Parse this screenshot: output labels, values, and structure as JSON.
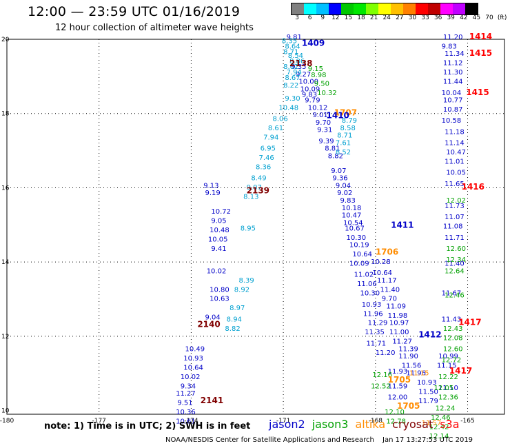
{
  "header": {
    "title": "12:00 — 23:59 UTC 01/16/2019",
    "subtitle": "12 hour collection of altimeter wave heights"
  },
  "legend": {
    "colors": [
      "#808080",
      "#00ffff",
      "#00c0ff",
      "#0000ff",
      "#00c800",
      "#00e800",
      "#80ff00",
      "#ffff00",
      "#ffc000",
      "#ff8000",
      "#ff0000",
      "#c00000",
      "#ff00ff",
      "#c000ff",
      "#000000"
    ],
    "ticks": [
      "3",
      "6",
      "9",
      "12",
      "15",
      "18",
      "21",
      "24",
      "27",
      "30",
      "33",
      "36",
      "39",
      "42",
      "45",
      "70",
      "(ft)"
    ]
  },
  "axes": {
    "lon_labels": [
      "-180",
      "-177",
      "-174",
      "-171",
      "-168",
      "-165"
    ],
    "lat_labels": [
      "20",
      "18",
      "16",
      "14",
      "12",
      "10"
    ]
  },
  "pass_labels": [
    {
      "text": "1409",
      "color": "#0000c8",
      "lon": -170.4,
      "lat": 19.82
    },
    {
      "text": "2138",
      "color": "#800000",
      "lon": -170.8,
      "lat": 19.28
    },
    {
      "text": "1707",
      "color": "#ff8c00",
      "lon": -169.35,
      "lat": 17.95
    },
    {
      "text": "1410",
      "color": "#0000c8",
      "lon": -169.6,
      "lat": 17.87
    },
    {
      "text": "2139",
      "color": "#800000",
      "lon": -172.2,
      "lat": 15.85
    },
    {
      "text": "1411",
      "color": "#0000c8",
      "lon": -167.5,
      "lat": 14.92
    },
    {
      "text": "1706",
      "color": "#ff8c00",
      "lon": -168.0,
      "lat": 14.2
    },
    {
      "text": "2140",
      "color": "#800000",
      "lon": -173.8,
      "lat": 12.25
    },
    {
      "text": "1412",
      "color": "#0000c8",
      "lon": -166.6,
      "lat": 11.97
    },
    {
      "text": "2141",
      "color": "#800000",
      "lon": -173.7,
      "lat": 10.2
    },
    {
      "text": "1705",
      "color": "#ff8c00",
      "lon": -167.6,
      "lat": 10.75
    },
    {
      "text": "1705",
      "color": "#ff8c00",
      "lon": -167.3,
      "lat": 10.05
    },
    {
      "text": "1414",
      "color": "#ff0000",
      "lon": -164.95,
      "lat": 20.0
    },
    {
      "text": "1415",
      "color": "#ff0000",
      "lon": -164.95,
      "lat": 19.55
    },
    {
      "text": "1415",
      "color": "#ff0000",
      "lon": -165.05,
      "lat": 18.5
    },
    {
      "text": "1416",
      "color": "#ff0000",
      "lon": -165.2,
      "lat": 15.95
    },
    {
      "text": "1417",
      "color": "#ff0000",
      "lon": -165.3,
      "lat": 12.3
    },
    {
      "text": "1417",
      "color": "#ff0000",
      "lon": -165.6,
      "lat": 11.0
    }
  ],
  "tracks": [
    {
      "name": "jason2-west",
      "color": "#0000c8",
      "points": [
        [
          -170.9,
          20.0,
          "9.81"
        ],
        [
          -170.75,
          19.2,
          "9.35"
        ],
        [
          -170.6,
          19.0,
          "9.27"
        ],
        [
          -170.5,
          18.8,
          "10.00"
        ],
        [
          -170.45,
          18.6,
          "10.09"
        ],
        [
          -170.4,
          18.45,
          "9.83"
        ],
        [
          -170.3,
          18.3,
          "9.79"
        ],
        [
          -170.2,
          18.1,
          "10.12"
        ],
        [
          -170.05,
          17.9,
          "9.01"
        ],
        [
          -169.95,
          17.7,
          "9.70"
        ],
        [
          -169.9,
          17.5,
          "9.31"
        ],
        [
          -169.85,
          17.2,
          "9.39"
        ],
        [
          -169.65,
          17.0,
          "8.81"
        ],
        [
          -169.55,
          16.8,
          "8.82"
        ],
        [
          -173.6,
          16.0,
          "9.13"
        ],
        [
          -173.55,
          15.8,
          "9.19"
        ],
        [
          -173.35,
          15.3,
          "10.72"
        ],
        [
          -173.35,
          15.05,
          "9.05"
        ],
        [
          -173.4,
          14.8,
          "10.48"
        ],
        [
          -173.45,
          14.55,
          "10.05"
        ],
        [
          -173.35,
          14.3,
          "9.41"
        ],
        [
          -173.5,
          13.7,
          "10.02"
        ],
        [
          -173.4,
          13.2,
          "10.80"
        ],
        [
          -173.4,
          12.95,
          "10.63"
        ],
        [
          -173.55,
          12.45,
          "9.04"
        ],
        [
          -174.2,
          11.6,
          "10.49"
        ],
        [
          -174.25,
          11.35,
          "10.93"
        ],
        [
          -174.25,
          11.1,
          "10.64"
        ],
        [
          -174.35,
          10.85,
          "10.02"
        ],
        [
          -174.35,
          10.6,
          "9.34"
        ],
        [
          -174.5,
          10.4,
          "11.27"
        ],
        [
          -174.45,
          10.15,
          "9.51"
        ],
        [
          -174.5,
          9.9,
          "10.36"
        ],
        [
          -174.5,
          9.65,
          "10.61"
        ]
      ]
    },
    {
      "name": "jason2-mid",
      "color": "#0000c8",
      "points": [
        [
          -169.45,
          16.4,
          "9.07"
        ],
        [
          -169.4,
          16.2,
          "9.36"
        ],
        [
          -169.3,
          16.0,
          "9.04"
        ],
        [
          -169.25,
          15.8,
          "9.02"
        ],
        [
          -169.15,
          15.6,
          "9.83"
        ],
        [
          -169.1,
          15.4,
          "10.18"
        ],
        [
          -169.1,
          15.2,
          "10.47"
        ],
        [
          -169.05,
          15.0,
          "10.54"
        ],
        [
          -169.0,
          14.85,
          "10.67"
        ],
        [
          -168.95,
          14.6,
          "10.30"
        ],
        [
          -168.85,
          14.4,
          "10.19"
        ],
        [
          -168.75,
          14.15,
          "10.64"
        ],
        [
          -168.85,
          13.9,
          "10.09"
        ],
        [
          -168.7,
          13.6,
          "11.02"
        ],
        [
          -168.6,
          13.35,
          "11.06"
        ],
        [
          -168.5,
          13.1,
          "10.30"
        ],
        [
          -168.45,
          12.8,
          "10.93"
        ],
        [
          -168.4,
          12.55,
          "11.96"
        ],
        [
          -168.25,
          12.3,
          "11.29"
        ],
        [
          -168.35,
          12.05,
          "11.35"
        ],
        [
          -168.3,
          11.75,
          "11.71"
        ],
        [
          -168.0,
          11.5,
          "11.20"
        ],
        [
          -167.6,
          11.0,
          "11.93"
        ],
        [
          -167.6,
          10.6,
          "11.59"
        ],
        [
          -167.6,
          10.3,
          "12.00"
        ]
      ]
    },
    {
      "name": "jason2-east",
      "color": "#0000c8",
      "points": [
        [
          -168.15,
          13.95,
          "10.28"
        ],
        [
          -168.1,
          13.65,
          "10.64"
        ],
        [
          -167.95,
          13.45,
          "11.17"
        ],
        [
          -167.85,
          13.2,
          "11.40"
        ],
        [
          -167.8,
          12.95,
          "9.70"
        ],
        [
          -167.65,
          12.75,
          "11.09"
        ],
        [
          -167.6,
          12.5,
          "11.98"
        ],
        [
          -167.55,
          12.3,
          "10.97"
        ],
        [
          -167.55,
          12.05,
          "11.00"
        ],
        [
          -167.45,
          11.8,
          "11.27"
        ],
        [
          -167.25,
          11.6,
          "11.39"
        ],
        [
          -167.25,
          11.4,
          "11.90"
        ],
        [
          -167.15,
          11.15,
          "11.56"
        ],
        [
          -167.0,
          10.95,
          "11.96"
        ],
        [
          -166.65,
          10.7,
          "10.93"
        ],
        [
          -166.6,
          10.45,
          "11.50"
        ],
        [
          -166.6,
          10.2,
          "11.79"
        ]
      ]
    },
    {
      "name": "jason2-far",
      "color": "#0000c8",
      "points": [
        [
          -165.8,
          20.0,
          "11.20"
        ],
        [
          -165.85,
          19.75,
          "9.83"
        ],
        [
          -165.75,
          19.55,
          "11.34"
        ],
        [
          -165.8,
          19.3,
          "11.12"
        ],
        [
          -165.8,
          19.05,
          "11.30"
        ],
        [
          -165.8,
          18.8,
          "11.44"
        ],
        [
          -165.85,
          18.5,
          "10.04"
        ],
        [
          -165.8,
          18.3,
          "10.77"
        ],
        [
          -165.8,
          18.05,
          "10.87"
        ],
        [
          -165.85,
          17.75,
          "10.58"
        ],
        [
          -165.75,
          17.45,
          "11.18"
        ],
        [
          -165.75,
          17.15,
          "11.14"
        ],
        [
          -165.7,
          16.9,
          "10.47"
        ],
        [
          -165.75,
          16.65,
          "11.01"
        ],
        [
          -165.7,
          16.35,
          "10.05"
        ],
        [
          -165.75,
          16.05,
          "11.65"
        ],
        [
          -165.75,
          15.45,
          "11.73"
        ],
        [
          -165.75,
          15.15,
          "11.07"
        ],
        [
          -165.8,
          14.9,
          "11.08"
        ],
        [
          -165.75,
          14.6,
          "11.71"
        ],
        [
          -165.75,
          13.9,
          "11.40"
        ],
        [
          -165.85,
          13.1,
          "11.67"
        ],
        [
          -165.85,
          12.4,
          "11.43"
        ],
        [
          -165.95,
          11.4,
          "10.99"
        ],
        [
          -166.0,
          11.15,
          "11.15"
        ],
        [
          -165.95,
          10.55,
          "11.10"
        ]
      ]
    },
    {
      "name": "jason3",
      "color": "#00a000",
      "points": [
        [
          -170.2,
          19.15,
          "9.15"
        ],
        [
          -170.1,
          18.98,
          "8.98"
        ],
        [
          -170.0,
          18.75,
          "9.50"
        ],
        [
          -169.9,
          18.5,
          "10.32"
        ],
        [
          -165.7,
          15.6,
          "12.02"
        ],
        [
          -165.7,
          14.3,
          "12.60"
        ],
        [
          -165.7,
          14.0,
          "12.34"
        ],
        [
          -165.75,
          13.7,
          "12.64"
        ],
        [
          -165.75,
          13.05,
          "12.46"
        ],
        [
          -165.8,
          12.15,
          "12.43"
        ],
        [
          -165.8,
          11.9,
          "12.08"
        ],
        [
          -165.8,
          11.6,
          "12.60"
        ],
        [
          -165.85,
          11.3,
          "12.72"
        ],
        [
          -165.95,
          10.85,
          "12.22"
        ],
        [
          -166.1,
          10.55,
          "12.05"
        ],
        [
          -165.95,
          10.3,
          "12.36"
        ],
        [
          -166.05,
          10.0,
          "12.24"
        ],
        [
          -166.2,
          9.75,
          "12.46"
        ],
        [
          -166.25,
          9.5,
          "12.42"
        ],
        [
          -166.25,
          9.25,
          "12.14"
        ],
        [
          -168.1,
          10.9,
          "12.16"
        ],
        [
          -168.15,
          10.6,
          "12.52"
        ],
        [
          -167.7,
          9.9,
          "12.10"
        ],
        [
          -167.65,
          9.65,
          "12.78"
        ]
      ]
    },
    {
      "name": "altika",
      "color": "#ff8c00",
      "points": [
        [
          -166.9,
          10.95,
          "11.15"
        ],
        [
          -166.5,
          9.6,
          "11.57"
        ]
      ]
    },
    {
      "name": "saral-cyan",
      "color": "#00a0d0",
      "points": [
        [
          -171.05,
          19.9,
          "8.35"
        ],
        [
          -170.95,
          19.75,
          "8.64"
        ],
        [
          -171.0,
          19.6,
          "8.71"
        ],
        [
          -170.85,
          19.5,
          "8.54"
        ],
        [
          -170.8,
          19.35,
          "8.86"
        ],
        [
          -171.0,
          19.2,
          "8.02"
        ],
        [
          -170.9,
          19.05,
          "7.94"
        ],
        [
          -170.95,
          18.9,
          "8.67"
        ],
        [
          -171.0,
          18.7,
          "8.22"
        ],
        [
          -170.95,
          18.35,
          "9.30"
        ],
        [
          -171.15,
          18.1,
          "10.48"
        ],
        [
          -171.35,
          17.8,
          "8.06"
        ],
        [
          -171.5,
          17.55,
          "8.61"
        ],
        [
          -171.65,
          17.3,
          "7.94"
        ],
        [
          -171.75,
          17.0,
          "6.95"
        ],
        [
          -171.8,
          16.75,
          "7.46"
        ],
        [
          -171.9,
          16.5,
          "8.36"
        ],
        [
          -172.05,
          16.2,
          "8.49"
        ],
        [
          -172.2,
          15.95,
          "9.07"
        ],
        [
          -172.3,
          15.7,
          "8.13"
        ],
        [
          -172.4,
          14.85,
          "8.95"
        ],
        [
          -172.45,
          13.45,
          "8.39"
        ],
        [
          -172.6,
          13.2,
          "8.92"
        ],
        [
          -172.75,
          12.7,
          "8.97"
        ],
        [
          -172.85,
          12.4,
          "8.94"
        ],
        [
          -172.9,
          12.15,
          "8.82"
        ],
        [
          -169.1,
          17.75,
          "8.79"
        ],
        [
          -169.15,
          17.55,
          "8.58"
        ],
        [
          -169.25,
          17.35,
          "8.71"
        ],
        [
          -169.3,
          17.15,
          "7.61"
        ],
        [
          -169.3,
          16.9,
          "8.52"
        ]
      ]
    }
  ],
  "note": "note: 1) Time is in UTC; 2) SWH is in feet",
  "satellites": [
    {
      "name": "jason2",
      "color": "#0000c8"
    },
    {
      "name": "jason3",
      "color": "#00a000"
    },
    {
      "name": "altika",
      "color": "#ff8c00"
    },
    {
      "name": "cryosat",
      "color": "#800000"
    },
    {
      "name": "s3a",
      "color": "#ff0000"
    }
  ],
  "footer": {
    "left": "NOAA/NESDIS Center for Satellite Applications and Research",
    "right": "Jan 17 13:27:53 UTC 2019"
  }
}
